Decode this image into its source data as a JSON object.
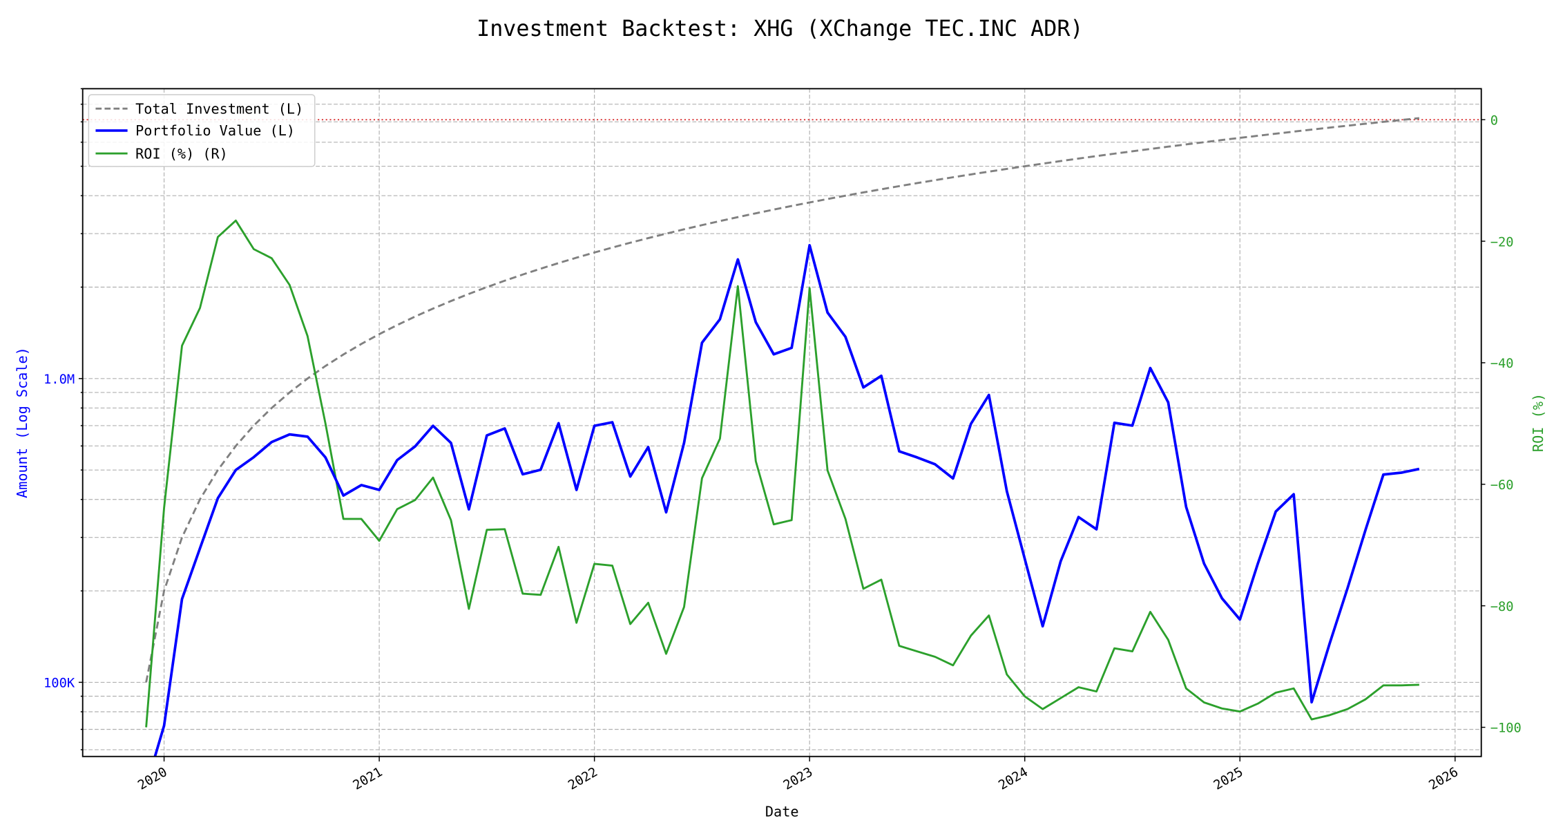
{
  "chart_data": {
    "type": "line",
    "title": "Investment Backtest: XHG (XChange TEC.INC ADR)",
    "xlabel": "Date",
    "ylabel_left": "Amount (Log Scale)",
    "ylabel_right": "ROI (%)",
    "left_scale": "log",
    "ylim_left": [
      57000,
      9000000
    ],
    "ylim_right": [
      -104.8,
      5.1
    ],
    "xlim": [
      "2019-08-15",
      "2026-02-15"
    ],
    "grid": true,
    "legend_position": "top-left",
    "x_ticks": [
      "2020",
      "2021",
      "2022",
      "2023",
      "2024",
      "2025",
      "2026"
    ],
    "left_ticks": [
      {
        "value": 100000,
        "label": "100K"
      },
      {
        "value": 1000000,
        "label": "1.0M"
      }
    ],
    "right_ticks": [
      {
        "value": 0,
        "label": "0"
      },
      {
        "value": -20,
        "label": "−20"
      },
      {
        "value": -40,
        "label": "−40"
      },
      {
        "value": -60,
        "label": "−60"
      },
      {
        "value": -80,
        "label": "−80"
      },
      {
        "value": -100,
        "label": "−100"
      }
    ],
    "reference_line": {
      "axis": "right",
      "value": 0,
      "color": "#d62728"
    },
    "x": [
      "2019-12",
      "2020-01",
      "2020-02",
      "2020-03",
      "2020-04",
      "2020-05",
      "2020-06",
      "2020-07",
      "2020-08",
      "2020-09",
      "2020-10",
      "2020-11",
      "2020-12",
      "2021-01",
      "2021-02",
      "2021-03",
      "2021-04",
      "2021-05",
      "2021-06",
      "2021-07",
      "2021-08",
      "2021-09",
      "2021-10",
      "2021-11",
      "2021-12",
      "2022-01",
      "2022-02",
      "2022-03",
      "2022-04",
      "2022-05",
      "2022-06",
      "2022-07",
      "2022-08",
      "2022-09",
      "2022-10",
      "2022-11",
      "2022-12",
      "2023-01",
      "2023-02",
      "2023-03",
      "2023-04",
      "2023-05",
      "2023-06",
      "2023-07",
      "2023-08",
      "2023-09",
      "2023-10",
      "2023-11",
      "2023-12",
      "2024-01",
      "2024-02",
      "2024-03",
      "2024-04",
      "2024-05",
      "2024-06",
      "2024-07",
      "2024-08",
      "2024-09",
      "2024-10",
      "2024-11",
      "2024-12",
      "2025-01",
      "2025-02",
      "2025-03",
      "2025-04",
      "2025-05",
      "2025-06",
      "2025-07",
      "2025-08",
      "2025-09",
      "2025-10",
      "2025-11"
    ],
    "series": [
      {
        "name": "Total Investment (L)",
        "axis": "left",
        "color": "#808080",
        "style": "dashed",
        "values": [
          100000,
          200000,
          300000,
          400000,
          500000,
          600000,
          700000,
          800000,
          900000,
          1000000,
          1100000,
          1200000,
          1300000,
          1400000,
          1500000,
          1600000,
          1700000,
          1800000,
          1900000,
          2000000,
          2100000,
          2200000,
          2300000,
          2400000,
          2500000,
          2600000,
          2700000,
          2800000,
          2900000,
          3000000,
          3100000,
          3200000,
          3300000,
          3400000,
          3500000,
          3600000,
          3700000,
          3800000,
          3900000,
          4000000,
          4100000,
          4200000,
          4300000,
          4400000,
          4500000,
          4600000,
          4700000,
          4800000,
          4900000,
          5000000,
          5100000,
          5200000,
          5300000,
          5400000,
          5500000,
          5600000,
          5700000,
          5800000,
          5900000,
          6000000,
          6100000,
          6200000,
          6300000,
          6400000,
          6500000,
          6600000,
          6700000,
          6800000,
          6900000,
          7000000,
          7100000,
          7200000
        ]
      },
      {
        "name": "Portfolio Value (L)",
        "axis": "left",
        "color": "#0000ff",
        "style": "solid",
        "values": [
          0,
          72000,
          188000,
          276000,
          404000,
          500000,
          551000,
          618000,
          655000,
          644000,
          550000,
          412000,
          446000,
          430000,
          539000,
          598000,
          699000,
          614000,
          371000,
          650000,
          685000,
          484000,
          501000,
          713000,
          430000,
          699000,
          718000,
          476000,
          595000,
          363000,
          614000,
          1312000,
          1568000,
          2468000,
          1533000,
          1202000,
          1262000,
          2747000,
          1650000,
          1372000,
          935000,
          1021000,
          576000,
          550000,
          522000,
          469000,
          710000,
          883000,
          426000,
          255000,
          153000,
          250000,
          350000,
          319000,
          715000,
          700000,
          1083000,
          835000,
          378000,
          246000,
          189000,
          161000,
          246000,
          365000,
          416000,
          86000,
          134000,
          204000,
          317000,
          483000,
          490000,
          504000
        ]
      },
      {
        "name": "ROI (%) (R)",
        "axis": "right",
        "color": "#2ca02c",
        "style": "solid",
        "values": [
          -100,
          -63.9,
          -37.2,
          -31,
          -19.3,
          -16.6,
          -21.3,
          -22.8,
          -27.2,
          -35.6,
          -50,
          -65.7,
          -65.7,
          -69.3,
          -64.1,
          -62.6,
          -58.9,
          -65.9,
          -80.5,
          -67.5,
          -67.4,
          -78,
          -78.2,
          -70.3,
          -82.8,
          -73.1,
          -73.4,
          -83,
          -79.5,
          -87.9,
          -80.2,
          -59,
          -52.5,
          -27.4,
          -56.2,
          -66.6,
          -65.9,
          -27.7,
          -57.7,
          -65.7,
          -77.2,
          -75.7,
          -86.6,
          -87.5,
          -88.4,
          -89.8,
          -84.9,
          -81.6,
          -91.3,
          -94.9,
          -97,
          -95.2,
          -93.4,
          -94.1,
          -87,
          -87.5,
          -81,
          -85.6,
          -93.6,
          -95.9,
          -96.9,
          -97.4,
          -96.1,
          -94.3,
          -93.6,
          -98.7,
          -98,
          -97,
          -95.4,
          -93.1,
          -93.1,
          -93
        ]
      }
    ]
  }
}
